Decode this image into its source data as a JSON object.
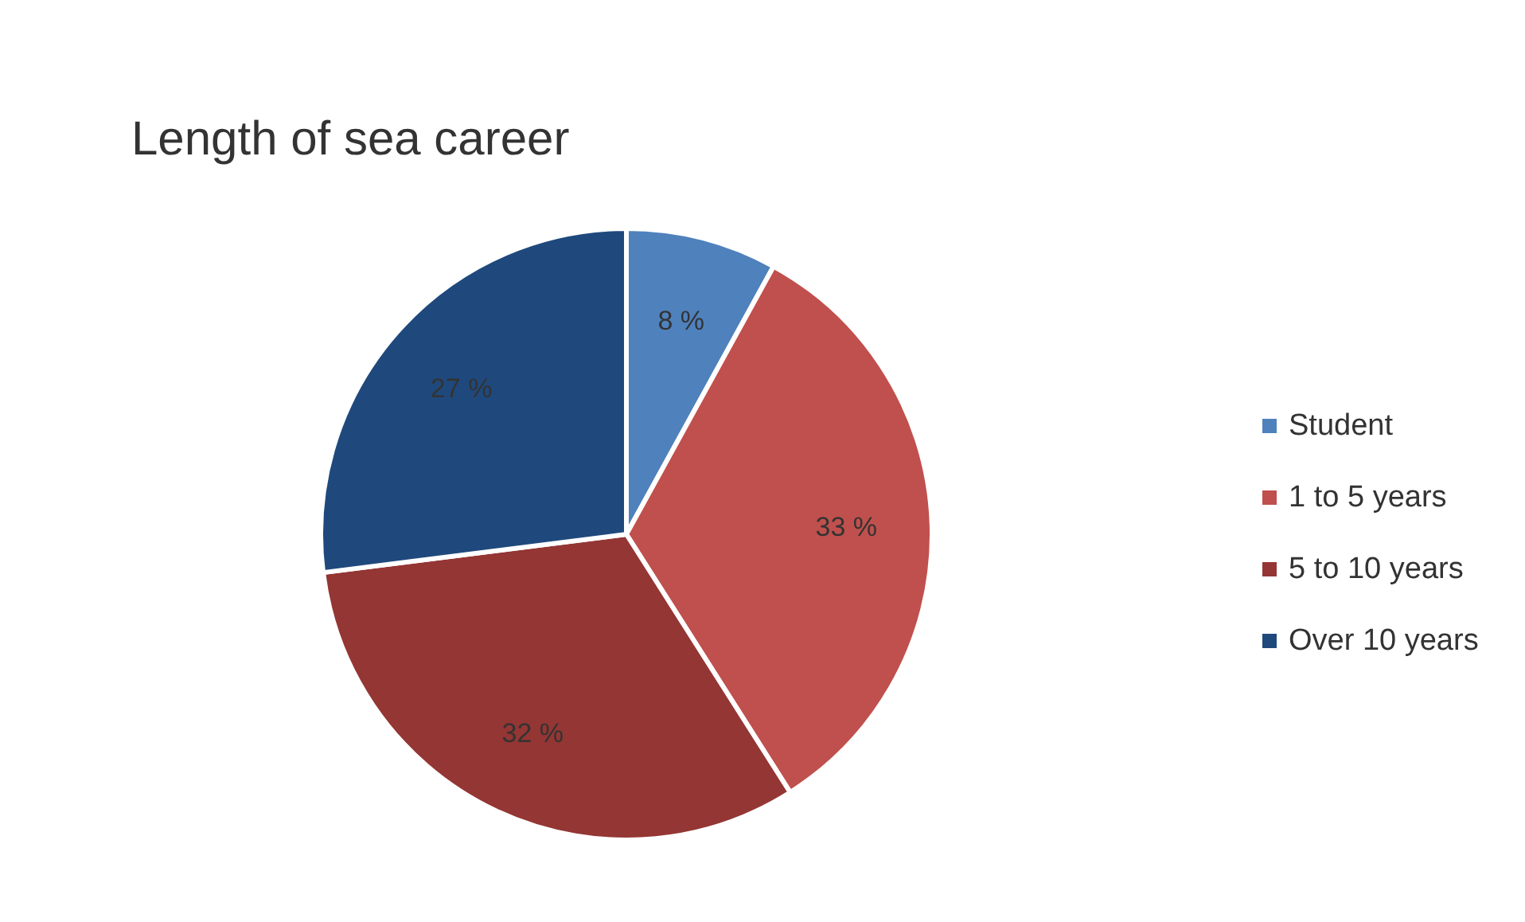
{
  "chart_data": {
    "type": "pie",
    "title": "Length of sea career",
    "categories": [
      "Student",
      "1 to 5 years",
      "5 to 10 years",
      "Over 10 years"
    ],
    "values": [
      8,
      33,
      32,
      27
    ],
    "value_labels": [
      "8 %",
      "33 %",
      "32 %",
      "27 %"
    ],
    "colors": [
      "#4f81bd",
      "#c0504d",
      "#943634",
      "#1f497d"
    ],
    "legend": "right"
  }
}
